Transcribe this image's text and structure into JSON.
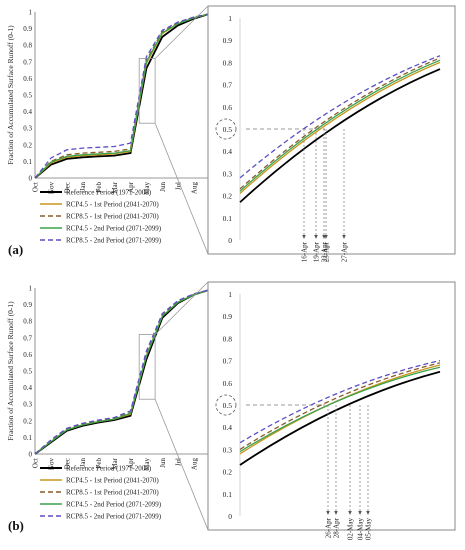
{
  "months": [
    "Oct",
    "Nov",
    "Dec",
    "Jan",
    "Feb",
    "Mar",
    "Apr",
    "May",
    "Jun",
    "Jul",
    "Aug",
    "Sep"
  ],
  "ylabel": "Fraction of Accumulated Surface Runoff (0-1)",
  "colors": {
    "Reference Period (1971-2000)": "#000000",
    "RCP4.5 - 1st Period (2041-2070)": "#c8961e",
    "RCP8.5 - 1st Period (2041-2070)": "#8b5a2b",
    "RCP4.5 - 2nd Period (2071-2099)": "#3aa34a",
    "RCP8.5 - 2nd Period (2071-2099)": "#5b4fc4"
  },
  "chart_data": [
    {
      "panel": "(a)",
      "type": "line",
      "x": [
        "Oct",
        "Nov",
        "Dec",
        "Jan",
        "Feb",
        "Mar",
        "Apr",
        "May",
        "Jun",
        "Jul",
        "Aug",
        "Sep"
      ],
      "ylim": [
        0,
        1
      ],
      "yticks": [
        "0",
        "0.1",
        "0.2",
        "0.3",
        "0.4",
        "0.5",
        "0.6",
        "0.7",
        "0.8",
        "0.9",
        "1"
      ],
      "series": [
        {
          "name": "Reference Period (1971-2000)",
          "style": "solid",
          "values": [
            0.0,
            0.08,
            0.115,
            0.125,
            0.13,
            0.135,
            0.15,
            0.66,
            0.85,
            0.92,
            0.96,
            0.99
          ]
        },
        {
          "name": "RCP4.5 - 1st Period (2041-2070)",
          "style": "solid",
          "values": [
            0.0,
            0.09,
            0.125,
            0.135,
            0.14,
            0.145,
            0.16,
            0.69,
            0.87,
            0.93,
            0.965,
            0.99
          ]
        },
        {
          "name": "RCP8.5 - 1st Period (2041-2070)",
          "style": "dashed",
          "values": [
            0.0,
            0.1,
            0.14,
            0.15,
            0.155,
            0.16,
            0.175,
            0.71,
            0.88,
            0.935,
            0.97,
            0.99
          ]
        },
        {
          "name": "RCP4.5 - 2nd Period (2071-2099)",
          "style": "solid",
          "values": [
            0.0,
            0.095,
            0.13,
            0.14,
            0.145,
            0.15,
            0.165,
            0.7,
            0.875,
            0.93,
            0.965,
            0.99
          ]
        },
        {
          "name": "RCP8.5 - 2nd Period (2071-2099)",
          "style": "dashed",
          "values": [
            0.0,
            0.12,
            0.17,
            0.18,
            0.185,
            0.19,
            0.21,
            0.73,
            0.89,
            0.94,
            0.97,
            0.99
          ]
        }
      ],
      "zoom": {
        "yticks": [
          "0",
          "0.1",
          "0.2",
          "0.3",
          "0.4",
          "0.5",
          "0.6",
          "0.7",
          "0.8",
          "0.9",
          "1"
        ],
        "ylim": [
          0,
          1
        ],
        "highlight": "0.5",
        "date_labels": [
          "16-Apr",
          "19-Apr",
          "22-Apr",
          "23-Apr",
          "27-Apr"
        ],
        "series_start": [
          0.17,
          0.21,
          0.23,
          0.22,
          0.28
        ],
        "series_end": [
          0.77,
          0.8,
          0.82,
          0.81,
          0.83
        ],
        "cross_t": [
          0.52,
          0.42,
          0.38,
          0.43,
          0.32
        ]
      }
    },
    {
      "panel": "(b)",
      "type": "line",
      "x": [
        "Oct",
        "Nov",
        "Dec",
        "Jan",
        "Feb",
        "Mar",
        "Apr",
        "May",
        "Jun",
        "Jul",
        "Aug",
        "Sep"
      ],
      "ylim": [
        0,
        1
      ],
      "yticks": [
        "0",
        "0.1",
        "0.2",
        "0.3",
        "0.4",
        "0.5",
        "0.6",
        "0.7",
        "0.8",
        "0.9",
        "1"
      ],
      "series": [
        {
          "name": "Reference Period (1971-2000)",
          "style": "solid",
          "values": [
            0.0,
            0.07,
            0.14,
            0.17,
            0.19,
            0.205,
            0.23,
            0.57,
            0.82,
            0.91,
            0.96,
            0.99
          ]
        },
        {
          "name": "RCP4.5 - 1st Period (2041-2070)",
          "style": "solid",
          "values": [
            0.0,
            0.075,
            0.145,
            0.175,
            0.195,
            0.21,
            0.24,
            0.59,
            0.83,
            0.915,
            0.96,
            0.99
          ]
        },
        {
          "name": "RCP8.5 - 1st Period (2041-2070)",
          "style": "dashed",
          "values": [
            0.0,
            0.08,
            0.15,
            0.18,
            0.2,
            0.215,
            0.25,
            0.6,
            0.835,
            0.92,
            0.965,
            0.99
          ]
        },
        {
          "name": "RCP4.5 - 2nd Period (2071-2099)",
          "style": "solid",
          "values": [
            0.0,
            0.075,
            0.145,
            0.175,
            0.195,
            0.21,
            0.245,
            0.59,
            0.83,
            0.915,
            0.96,
            0.99
          ]
        },
        {
          "name": "RCP8.5 - 2nd Period (2071-2099)",
          "style": "dashed",
          "values": [
            0.0,
            0.085,
            0.155,
            0.185,
            0.205,
            0.22,
            0.26,
            0.62,
            0.845,
            0.925,
            0.965,
            0.99
          ]
        }
      ],
      "zoom": {
        "yticks": [
          "0",
          "0.1",
          "0.2",
          "0.3",
          "0.4",
          "0.5",
          "0.6",
          "0.7",
          "0.8",
          "0.9",
          "1"
        ],
        "ylim": [
          0,
          1
        ],
        "highlight": "0.5",
        "date_labels": [
          "26-Apr",
          "28-Apr",
          "02-May",
          "04-May",
          "05-May"
        ],
        "series_start": [
          0.23,
          0.28,
          0.3,
          0.29,
          0.33
        ],
        "series_end": [
          0.65,
          0.68,
          0.69,
          0.67,
          0.7
        ],
        "cross_t": [
          0.44,
          0.48,
          0.55,
          0.6,
          0.64
        ]
      }
    }
  ],
  "legend": [
    "Reference Period (1971-2000)",
    "RCP4.5 - 1st Period (2041-2070)",
    "RCP8.5 - 1st Period (2041-2070)",
    "RCP4.5 - 2nd Period (2071-2099)",
    "RCP8.5 - 2nd Period (2071-2099)"
  ]
}
